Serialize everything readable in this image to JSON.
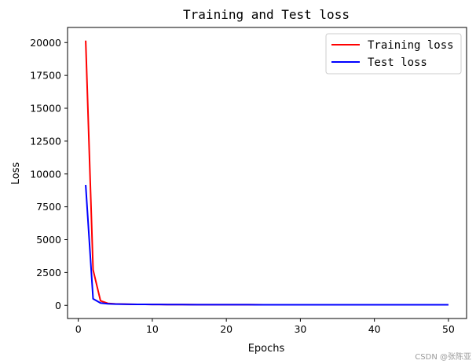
{
  "chart_data": {
    "type": "line",
    "title": "Training and Test loss",
    "xlabel": "Epochs",
    "ylabel": "Loss",
    "xlim": [
      -1.45,
      52.45
    ],
    "ylim": [
      -1000,
      21150
    ],
    "xticks": [
      0,
      10,
      20,
      30,
      40,
      50
    ],
    "yticks": [
      0,
      2500,
      5000,
      7500,
      10000,
      12500,
      15000,
      17500,
      20000
    ],
    "grid": false,
    "legend_position": "top-right",
    "x": [
      1,
      2,
      3,
      4,
      5,
      6,
      7,
      8,
      9,
      10,
      11,
      12,
      13,
      14,
      15,
      16,
      17,
      18,
      19,
      20,
      21,
      22,
      23,
      24,
      25,
      26,
      27,
      28,
      29,
      30,
      31,
      32,
      33,
      34,
      35,
      36,
      37,
      38,
      39,
      40,
      41,
      42,
      43,
      44,
      45,
      46,
      47,
      48,
      49,
      50
    ],
    "series": [
      {
        "name": "Training loss",
        "color": "#ff0000",
        "values": [
          20150,
          2700,
          350,
          150,
          110,
          95,
          85,
          78,
          72,
          68,
          65,
          62,
          60,
          58,
          56,
          55,
          54,
          53,
          52,
          51,
          50,
          50,
          49,
          49,
          48,
          48,
          47,
          47,
          47,
          46,
          46,
          46,
          45,
          45,
          45,
          45,
          44,
          44,
          44,
          44,
          43,
          43,
          43,
          43,
          43,
          42,
          42,
          42,
          42,
          42
        ]
      },
      {
        "name": "Test loss",
        "color": "#0000ff",
        "values": [
          9150,
          500,
          180,
          120,
          100,
          90,
          82,
          76,
          71,
          67,
          64,
          61,
          59,
          57,
          55,
          54,
          53,
          52,
          51,
          50,
          50,
          52,
          49,
          48,
          48,
          47,
          47,
          46,
          46,
          46,
          45,
          45,
          45,
          48,
          44,
          44,
          44,
          44,
          43,
          43,
          43,
          43,
          43,
          42,
          42,
          42,
          45,
          42,
          41,
          41
        ]
      }
    ]
  },
  "watermark": "CSDN @张陈亚"
}
